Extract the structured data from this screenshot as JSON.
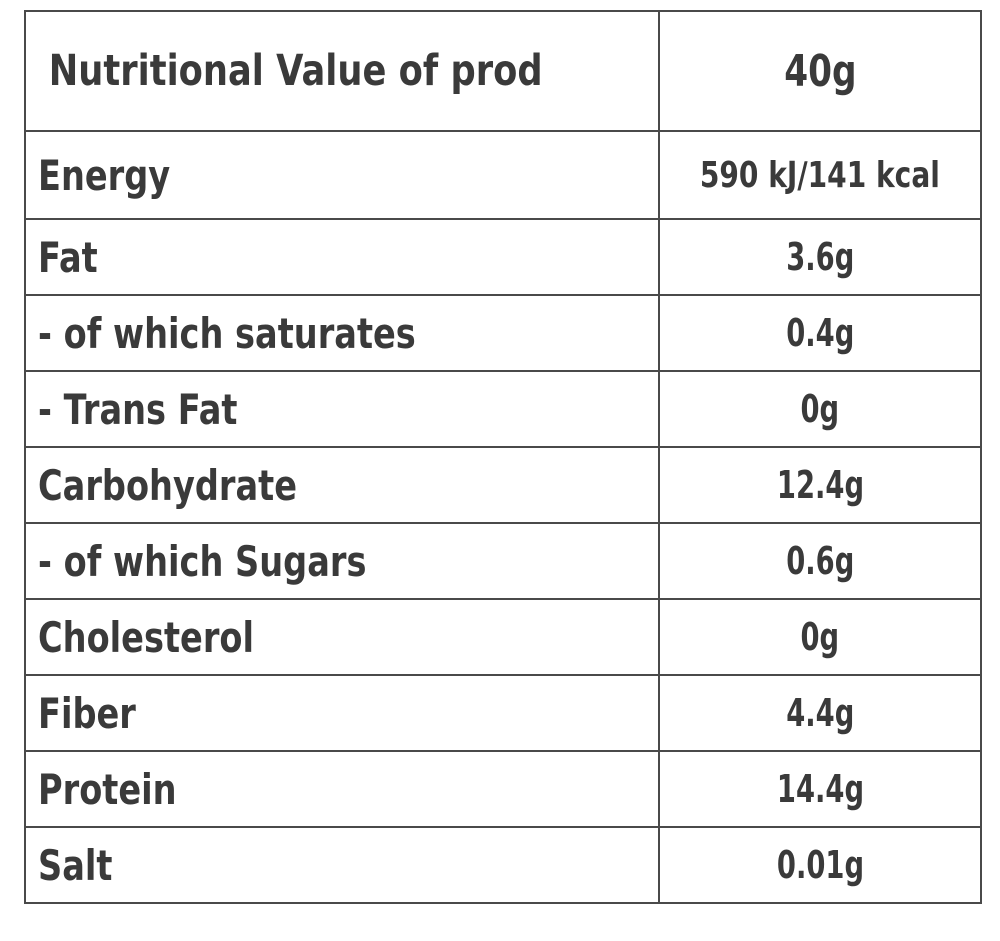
{
  "table": {
    "header": {
      "label": "Nutritional Value of product",
      "value": "40g"
    },
    "rows": [
      {
        "label": "Energy",
        "value": "590 kJ/141 kcal"
      },
      {
        "label": "Fat",
        "value": "3.6g"
      },
      {
        "label": "- of which saturates",
        "value": "0.4g"
      },
      {
        "label": "- Trans Fat",
        "value": "0g"
      },
      {
        "label": "Carbohydrate",
        "value": "12.4g"
      },
      {
        "label": "- of which Sugars",
        "value": "0.6g"
      },
      {
        "label": "Cholesterol",
        "value": "0g"
      },
      {
        "label": "Fiber",
        "value": "4.4g"
      },
      {
        "label": "Protein",
        "value": "14.4g"
      },
      {
        "label": "Salt",
        "value": "0.01g"
      }
    ]
  }
}
